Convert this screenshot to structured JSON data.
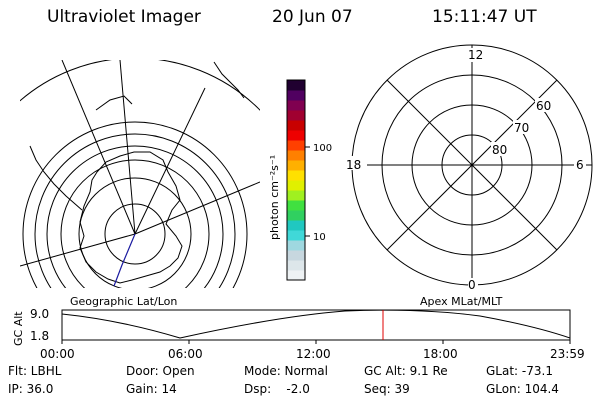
{
  "header": {
    "title": "Ultraviolet Imager",
    "date": "20 Jun 07",
    "time": "15:11:47 UT"
  },
  "geographic_panel": {
    "label": "Geographic Lat/Lon"
  },
  "colorbar": {
    "unit_label": "photon cm⁻²s⁻¹",
    "ticks": [
      "100",
      "10"
    ],
    "scale": "log",
    "colors": [
      "#eef2f4",
      "#dde6ea",
      "#c7d7df",
      "#9fd8e0",
      "#40d8d8",
      "#20c8c0",
      "#30d060",
      "#40e040",
      "#a0f020",
      "#e0f000",
      "#ffe000",
      "#ffb000",
      "#ff8000",
      "#ff4000",
      "#ee0000",
      "#c80000",
      "#a00030",
      "#800050",
      "#500060",
      "#200030"
    ]
  },
  "magnetic_panel": {
    "label": "Apex MLat/MLT",
    "mlt_labels": {
      "top": "12",
      "left": "18",
      "right": "6",
      "bottom": "0"
    },
    "lat_labels": [
      "60",
      "70",
      "80"
    ]
  },
  "altitude_plot": {
    "ylabel": "GC Alt",
    "yticks": [
      "9.0",
      "1.8"
    ],
    "xticks": [
      "00:00",
      "06:00",
      "12:00",
      "18:00",
      "23:59"
    ],
    "current_time_marker": "15:11:47"
  },
  "info": {
    "row1": {
      "filter": "Flt: LBHL",
      "door": "Door: Open",
      "mode": "Mode: Normal",
      "gc_alt": "GC Alt: 9.1 Re",
      "glat": "GLat: -73.1"
    },
    "row2": {
      "ip": "IP: 36.0",
      "gain": "Gain: 14",
      "dsp": "Dsp:    -2.0",
      "seq": "Seq: 39",
      "glon": "GLon: 104.4"
    }
  }
}
